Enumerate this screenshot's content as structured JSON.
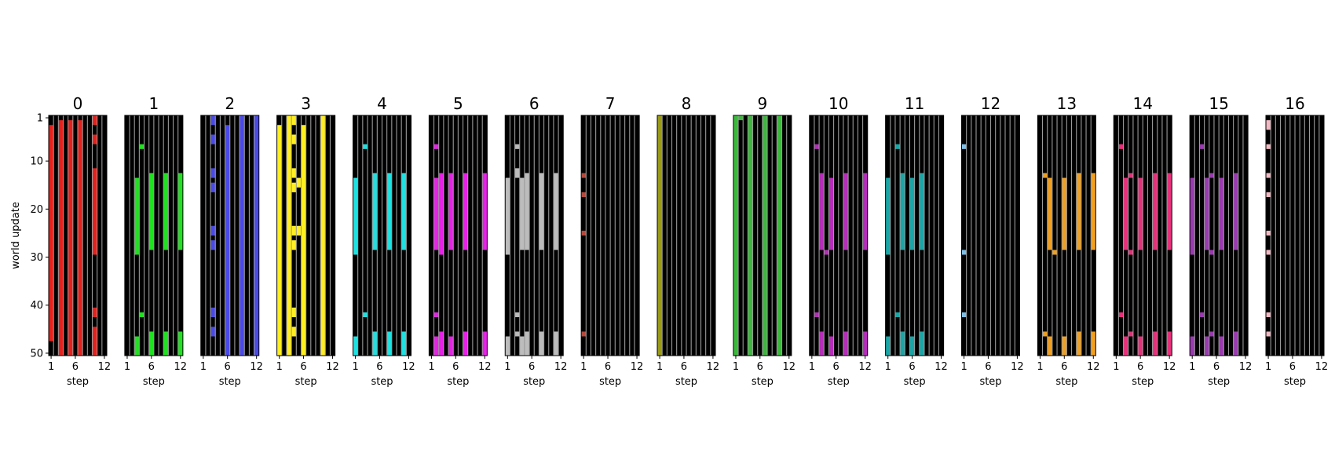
{
  "chart_data": {
    "type": "heatmap",
    "ylabel": "world update",
    "xlabel": "step",
    "xticks": [
      1,
      6,
      12
    ],
    "yticks": [
      1,
      10,
      20,
      30,
      40,
      50
    ],
    "n_steps": 12,
    "n_updates": 50,
    "background": "#000000",
    "gridline_color": "#9a9a9a",
    "panels": [
      {
        "title": "0",
        "color": "#e8201b",
        "cells": [
          [
            1,
            3,
            47
          ],
          [
            3,
            2,
            50
          ],
          [
            5,
            2,
            50
          ],
          [
            7,
            2,
            50
          ],
          [
            10,
            1,
            2
          ],
          [
            10,
            5,
            6
          ],
          [
            10,
            12,
            29
          ],
          [
            10,
            41,
            42
          ],
          [
            10,
            45,
            50
          ]
        ]
      },
      {
        "title": "1",
        "color": "#22e022",
        "cells": [
          [
            3,
            14,
            29
          ],
          [
            3,
            47,
            50
          ],
          [
            4,
            7,
            7
          ],
          [
            4,
            42,
            42
          ],
          [
            6,
            13,
            28
          ],
          [
            6,
            46,
            50
          ],
          [
            9,
            13,
            28
          ],
          [
            9,
            46,
            50
          ],
          [
            12,
            13,
            28
          ],
          [
            12,
            46,
            50
          ]
        ]
      },
      {
        "title": "2",
        "color": "#4a4ae6",
        "cells": [
          [
            3,
            1,
            2
          ],
          [
            3,
            5,
            6
          ],
          [
            3,
            12,
            13
          ],
          [
            3,
            15,
            16
          ],
          [
            3,
            24,
            25
          ],
          [
            3,
            27,
            28
          ],
          [
            3,
            41,
            42
          ],
          [
            3,
            45,
            46
          ],
          [
            6,
            3,
            50
          ],
          [
            9,
            1,
            50
          ],
          [
            12,
            1,
            50
          ]
        ]
      },
      {
        "title": "3",
        "color": "#ffee22",
        "cells": [
          [
            1,
            3,
            50
          ],
          [
            3,
            1,
            50
          ],
          [
            4,
            1,
            2
          ],
          [
            4,
            5,
            6
          ],
          [
            4,
            12,
            13
          ],
          [
            4,
            15,
            16
          ],
          [
            4,
            24,
            25
          ],
          [
            4,
            27,
            28
          ],
          [
            4,
            41,
            42
          ],
          [
            4,
            45,
            46
          ],
          [
            5,
            14,
            15
          ],
          [
            5,
            24,
            25
          ],
          [
            6,
            3,
            50
          ],
          [
            10,
            1,
            50
          ]
        ]
      },
      {
        "title": "4",
        "color": "#22e0e0",
        "cells": [
          [
            1,
            14,
            29
          ],
          [
            1,
            47,
            50
          ],
          [
            3,
            7,
            7
          ],
          [
            3,
            42,
            42
          ],
          [
            5,
            13,
            28
          ],
          [
            5,
            46,
            50
          ],
          [
            8,
            13,
            28
          ],
          [
            8,
            46,
            50
          ],
          [
            11,
            13,
            28
          ],
          [
            11,
            46,
            50
          ]
        ]
      },
      {
        "title": "5",
        "color": "#e622e6",
        "cells": [
          [
            2,
            7,
            7
          ],
          [
            2,
            14,
            28
          ],
          [
            2,
            42,
            42
          ],
          [
            2,
            47,
            50
          ],
          [
            3,
            13,
            29
          ],
          [
            3,
            46,
            50
          ],
          [
            5,
            13,
            28
          ],
          [
            5,
            47,
            50
          ],
          [
            8,
            13,
            28
          ],
          [
            8,
            46,
            50
          ],
          [
            12,
            13,
            28
          ],
          [
            12,
            46,
            50
          ]
        ]
      },
      {
        "title": "6",
        "color": "#bcbcbc",
        "cells": [
          [
            1,
            14,
            29
          ],
          [
            1,
            47,
            50
          ],
          [
            3,
            7,
            7
          ],
          [
            3,
            12,
            13
          ],
          [
            3,
            42,
            42
          ],
          [
            3,
            46,
            46
          ],
          [
            4,
            14,
            28
          ],
          [
            4,
            47,
            50
          ],
          [
            5,
            13,
            28
          ],
          [
            5,
            46,
            50
          ],
          [
            8,
            13,
            28
          ],
          [
            8,
            46,
            50
          ],
          [
            11,
            13,
            28
          ],
          [
            11,
            46,
            50
          ]
        ]
      },
      {
        "title": "7",
        "color": "#b64a3e",
        "cells": [
          [
            1,
            13,
            13
          ],
          [
            1,
            17,
            17
          ],
          [
            1,
            25,
            25
          ],
          [
            1,
            46,
            46
          ]
        ]
      },
      {
        "title": "8",
        "color": "#9a9a18",
        "cells": [
          [
            1,
            1,
            50
          ]
        ]
      },
      {
        "title": "9",
        "color": "#3cb83c",
        "cells": [
          [
            1,
            1,
            50
          ],
          [
            2,
            1,
            1
          ],
          [
            4,
            1,
            50
          ],
          [
            7,
            1,
            50
          ],
          [
            10,
            1,
            50
          ]
        ]
      },
      {
        "title": "10",
        "color": "#b42eb8",
        "cells": [
          [
            2,
            7,
            7
          ],
          [
            2,
            42,
            42
          ],
          [
            3,
            13,
            28
          ],
          [
            3,
            46,
            50
          ],
          [
            4,
            29,
            29
          ],
          [
            5,
            14,
            28
          ],
          [
            5,
            47,
            50
          ],
          [
            8,
            13,
            28
          ],
          [
            8,
            46,
            50
          ],
          [
            12,
            13,
            28
          ],
          [
            12,
            46,
            50
          ]
        ]
      },
      {
        "title": "11",
        "color": "#1aa6a6",
        "cells": [
          [
            1,
            14,
            29
          ],
          [
            1,
            47,
            50
          ],
          [
            3,
            7,
            7
          ],
          [
            3,
            42,
            42
          ],
          [
            4,
            13,
            28
          ],
          [
            4,
            46,
            50
          ],
          [
            6,
            14,
            28
          ],
          [
            6,
            47,
            50
          ],
          [
            8,
            13,
            28
          ],
          [
            8,
            46,
            50
          ]
        ]
      },
      {
        "title": "12",
        "color": "#7ec0e8",
        "cells": [
          [
            1,
            7,
            7
          ],
          [
            1,
            29,
            29
          ],
          [
            1,
            42,
            42
          ]
        ]
      },
      {
        "title": "13",
        "color": "#f0a020",
        "cells": [
          [
            2,
            13,
            13
          ],
          [
            2,
            46,
            46
          ],
          [
            3,
            14,
            28
          ],
          [
            3,
            47,
            50
          ],
          [
            4,
            29,
            29
          ],
          [
            6,
            14,
            28
          ],
          [
            6,
            47,
            50
          ],
          [
            9,
            13,
            28
          ],
          [
            9,
            46,
            50
          ],
          [
            12,
            13,
            28
          ],
          [
            12,
            46,
            50
          ]
        ]
      },
      {
        "title": "14",
        "color": "#e8307a",
        "cells": [
          [
            2,
            7,
            7
          ],
          [
            2,
            42,
            42
          ],
          [
            3,
            14,
            28
          ],
          [
            3,
            47,
            50
          ],
          [
            4,
            13,
            13
          ],
          [
            4,
            29,
            29
          ],
          [
            4,
            46,
            46
          ],
          [
            6,
            14,
            28
          ],
          [
            6,
            47,
            50
          ],
          [
            9,
            13,
            28
          ],
          [
            9,
            46,
            50
          ],
          [
            12,
            13,
            28
          ],
          [
            12,
            46,
            50
          ]
        ]
      },
      {
        "title": "15",
        "color": "#9a3ab0",
        "cells": [
          [
            1,
            14,
            29
          ],
          [
            1,
            47,
            50
          ],
          [
            3,
            7,
            7
          ],
          [
            3,
            42,
            42
          ],
          [
            4,
            14,
            28
          ],
          [
            4,
            47,
            50
          ],
          [
            5,
            13,
            13
          ],
          [
            5,
            29,
            29
          ],
          [
            5,
            46,
            46
          ],
          [
            7,
            14,
            28
          ],
          [
            7,
            47,
            50
          ],
          [
            10,
            13,
            28
          ],
          [
            10,
            46,
            50
          ]
        ]
      },
      {
        "title": "16",
        "color": "#f2b8c2",
        "cells": [
          [
            1,
            2,
            3
          ],
          [
            1,
            7,
            7
          ],
          [
            1,
            13,
            13
          ],
          [
            1,
            17,
            17
          ],
          [
            1,
            25,
            25
          ],
          [
            1,
            29,
            29
          ],
          [
            1,
            42,
            42
          ],
          [
            1,
            46,
            46
          ]
        ]
      }
    ]
  }
}
